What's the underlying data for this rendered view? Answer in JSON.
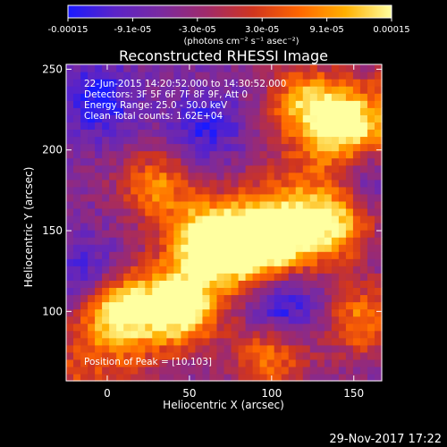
{
  "chart_data": {
    "type": "heatmap",
    "title": "Reconstructed RHESSI Image",
    "xlabel": "Heliocentric X (arcsec)",
    "ylabel": "Heliocentric Y (arcsec)",
    "xlim": [
      -25,
      167
    ],
    "ylim": [
      57,
      253
    ],
    "xticks": [
      0,
      50,
      100,
      150
    ],
    "yticks": [
      100,
      150,
      200,
      250
    ],
    "xticklabels": [
      "0",
      "50",
      "100",
      "150"
    ],
    "yticklabels": [
      "100",
      "150",
      "200",
      "250"
    ],
    "colorbar": {
      "range": [
        -0.00015,
        0.00015
      ],
      "tick_labels": [
        "-0.00015",
        "-9.1e-05",
        "-3.0e-05",
        "3.0e-05",
        "9.1e-05",
        "0.00015"
      ],
      "units": "(photons cm⁻² s⁻¹ asec⁻²)",
      "colormap": [
        "#1a1aff",
        "#5a23c8",
        "#7a2aa0",
        "#a02a6a",
        "#d0351f",
        "#ff6600",
        "#ffb000",
        "#ffffa0"
      ]
    },
    "annotations": [
      "22-Jun-2015 14:20:52.000 to 14:30:52.000",
      "Detectors: 3F 5F 6F 7F 8F 9F, Att 0",
      "Energy Range: 25.0 - 50.0 keV",
      "Clean     Total counts: 1.62E+04"
    ],
    "peak_label": "Position of Peak = [10,103]",
    "peak_position": [
      10,
      103
    ],
    "bright_regions": [
      {
        "x": 5,
        "y": 103,
        "intensity": 1.0
      },
      {
        "x": 45,
        "y": 102,
        "intensity": 0.85
      },
      {
        "x": 60,
        "y": 145,
        "intensity": 0.95
      },
      {
        "x": 85,
        "y": 140,
        "intensity": 0.9
      },
      {
        "x": 110,
        "y": 148,
        "intensity": 0.85
      },
      {
        "x": 140,
        "y": 155,
        "intensity": 0.8
      },
      {
        "x": 145,
        "y": 215,
        "intensity": 0.85
      },
      {
        "x": 120,
        "y": 230,
        "intensity": 0.75
      },
      {
        "x": 30,
        "y": 178,
        "intensity": 0.6
      },
      {
        "x": 100,
        "y": 75,
        "intensity": 0.7
      },
      {
        "x": 155,
        "y": 95,
        "intensity": 0.6
      }
    ],
    "dark_regions": [
      {
        "x": 105,
        "y": 100,
        "intensity": -0.85
      },
      {
        "x": -10,
        "y": 120,
        "intensity": -0.7
      },
      {
        "x": -5,
        "y": 230,
        "intensity": -0.75
      },
      {
        "x": 155,
        "y": 185,
        "intensity": -0.7
      },
      {
        "x": 60,
        "y": 215,
        "intensity": -0.6
      }
    ]
  },
  "footer": {
    "date": "29-Nov-2017 17:22"
  }
}
